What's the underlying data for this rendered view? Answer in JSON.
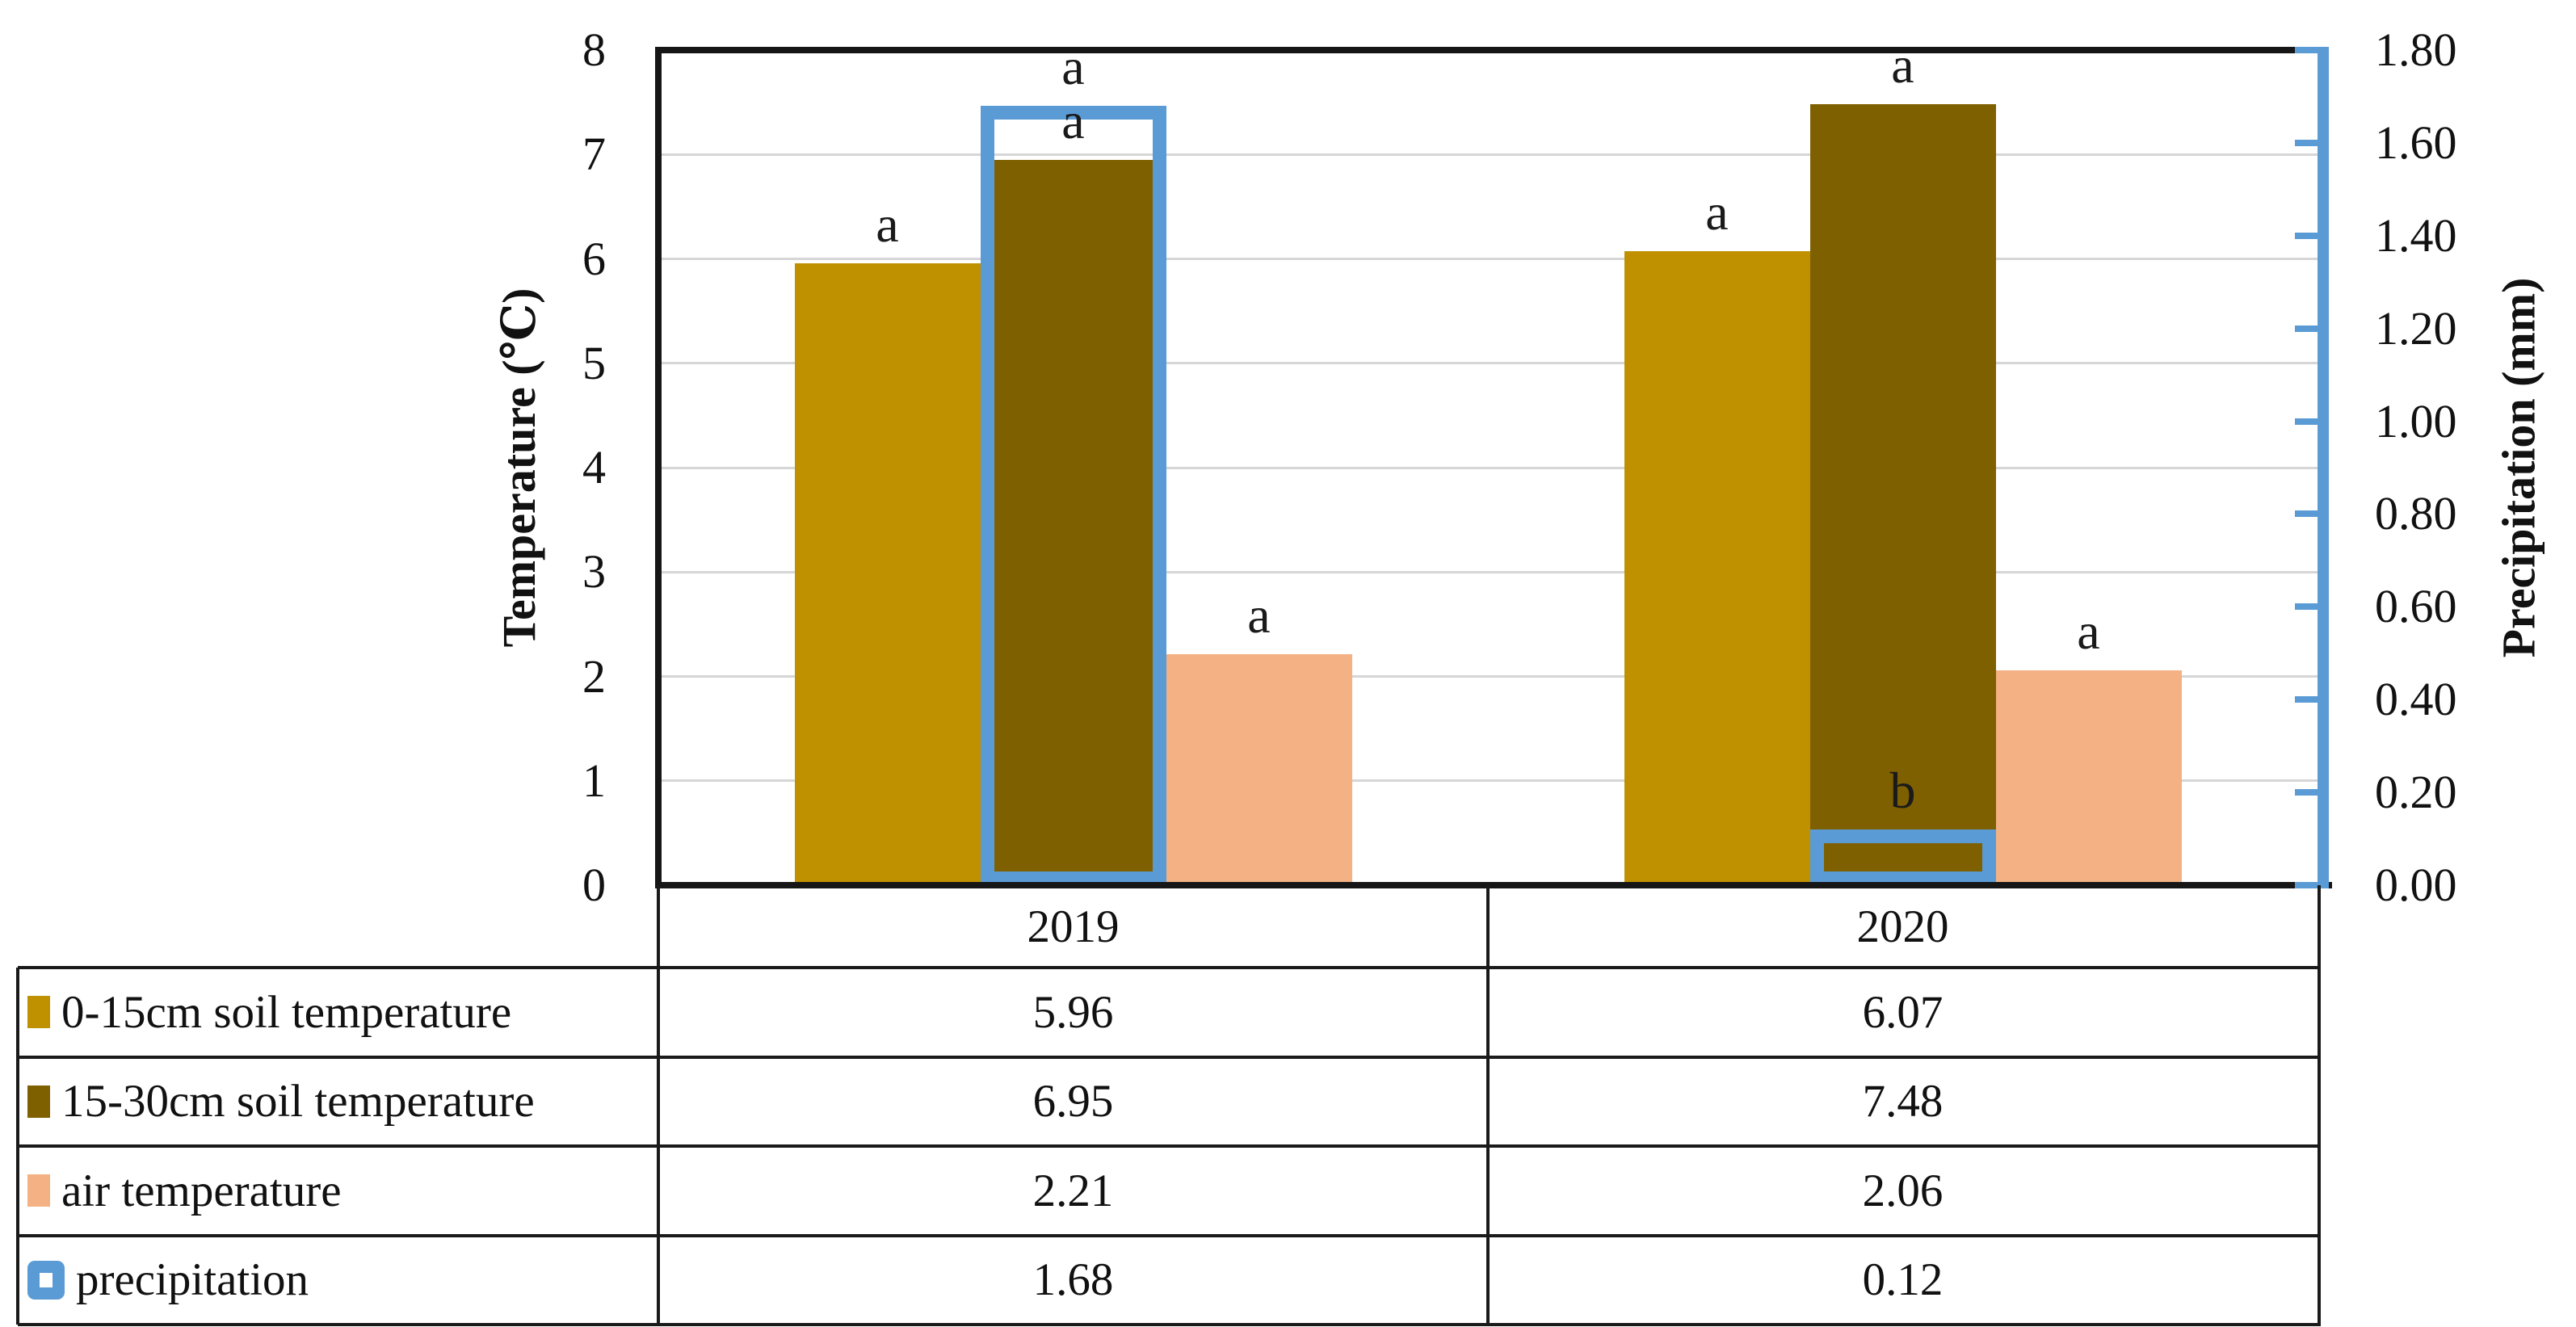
{
  "chart_data": {
    "type": "bar",
    "title": "",
    "categories": [
      "2019",
      "2020"
    ],
    "series": [
      {
        "name": "0-15cm soil temperature",
        "color": "#BF9000",
        "axis": "left",
        "style": "fill",
        "slot": 0,
        "values": [
          5.96,
          6.07
        ],
        "sig_labels": [
          "a",
          "a"
        ]
      },
      {
        "name": "15-30cm soil temperature",
        "color": "#7F6000",
        "axis": "left",
        "style": "fill",
        "slot": 1,
        "values": [
          6.95,
          7.48
        ],
        "sig_labels": [
          "a",
          "a"
        ]
      },
      {
        "name": "air temperature",
        "color": "#F4B183",
        "axis": "left",
        "style": "fill",
        "slot": 2,
        "values": [
          2.21,
          2.06
        ],
        "sig_labels": [
          "a",
          "a"
        ]
      },
      {
        "name": "precipitation",
        "color": "#5B9BD5",
        "axis": "right",
        "style": "outline",
        "slot": 1,
        "values": [
          1.68,
          0.12
        ],
        "sig_labels": [
          "a",
          "b"
        ]
      }
    ],
    "left_axis": {
      "title": "Temperature (℃)",
      "min": 0,
      "max": 8,
      "tick_labels": [
        "0",
        "1",
        "2",
        "3",
        "4",
        "5",
        "6",
        "7",
        "8"
      ]
    },
    "right_axis": {
      "title": "Precipitation (mm)",
      "min": 0,
      "max": 1.8,
      "tick_labels": [
        "0.00",
        "0.20",
        "0.40",
        "0.60",
        "0.80",
        "1.00",
        "1.20",
        "1.40",
        "1.60",
        "1.80"
      ],
      "line_color": "#5B9BD5"
    },
    "gridlines": {
      "show": true,
      "color": "#d6d6d6"
    },
    "table": {
      "col_headers": [
        "2019",
        "2020"
      ],
      "rows": [
        {
          "label": "0-15cm soil temperature",
          "swatch_color": "#BF9000",
          "swatch_style": "fill",
          "values": [
            "5.96",
            "6.07"
          ]
        },
        {
          "label": "15-30cm soil temperature",
          "swatch_color": "#7F6000",
          "swatch_style": "fill",
          "values": [
            "6.95",
            "7.48"
          ]
        },
        {
          "label": "air temperature",
          "swatch_color": "#F4B183",
          "swatch_style": "fill",
          "values": [
            "2.21",
            "2.06"
          ]
        },
        {
          "label": "precipitation",
          "swatch_color": "#5B9BD5",
          "swatch_style": "outline",
          "values": [
            "1.68",
            "0.12"
          ]
        }
      ]
    }
  }
}
